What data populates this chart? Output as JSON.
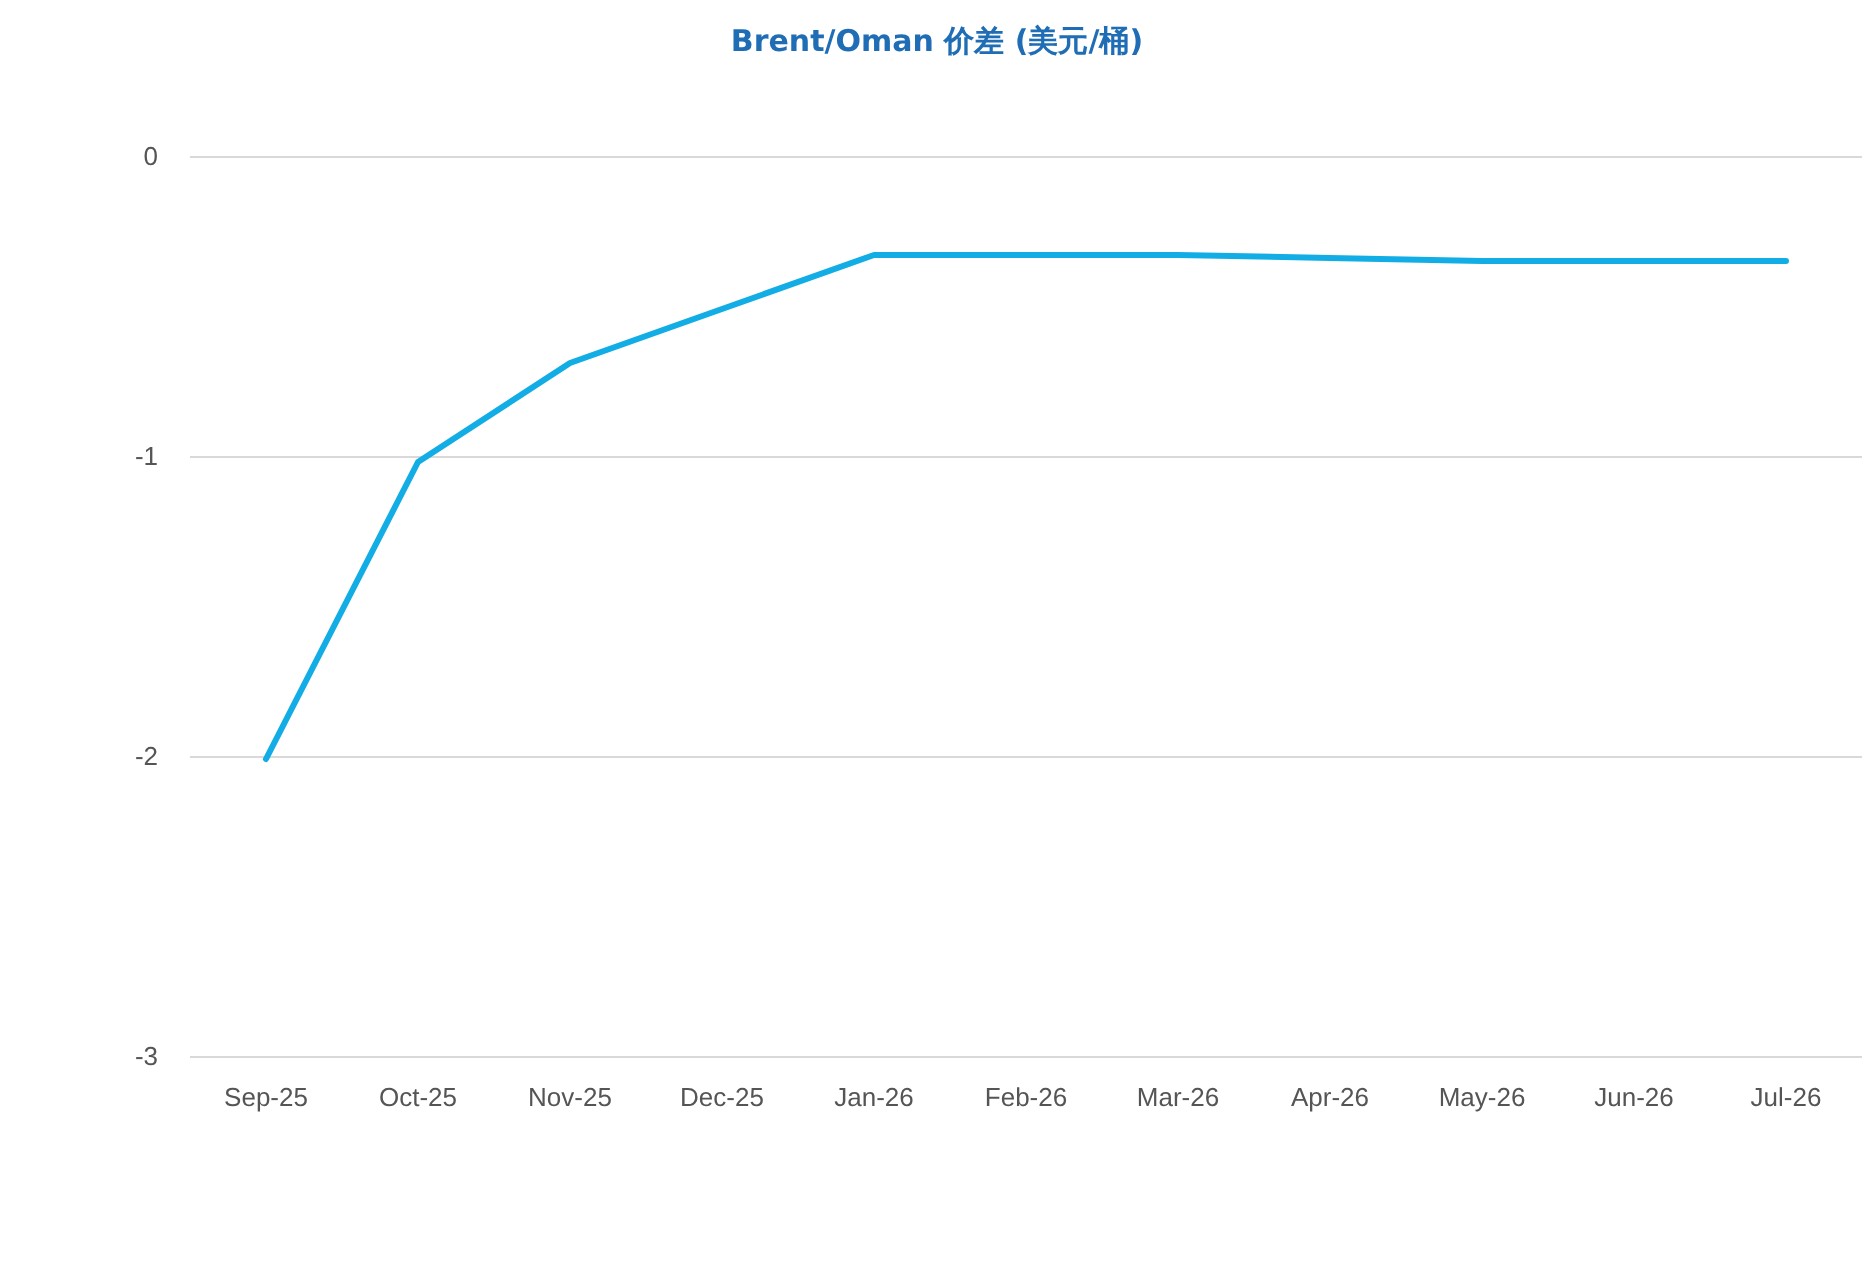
{
  "chart_data": {
    "type": "line",
    "title": "Brent/Oman 价差 (美元/桶)",
    "categories": [
      "Sep-25",
      "Oct-25",
      "Nov-25",
      "Dec-25",
      "Jan-26",
      "Feb-26",
      "Mar-26",
      "Apr-26",
      "May-26",
      "Jun-26",
      "Jul-26"
    ],
    "series": [
      {
        "color": "#13ade6",
        "values": [
          -2.01,
          -1.02,
          -0.69,
          -0.51,
          -0.33,
          -0.33,
          -0.33,
          -0.34,
          -0.35,
          -0.35,
          -0.35
        ]
      }
    ],
    "ylim": [
      -3,
      0
    ],
    "yticks": [
      -3,
      -2,
      -1,
      0
    ],
    "grid": "y",
    "marker": "none",
    "line_style": "solid"
  }
}
